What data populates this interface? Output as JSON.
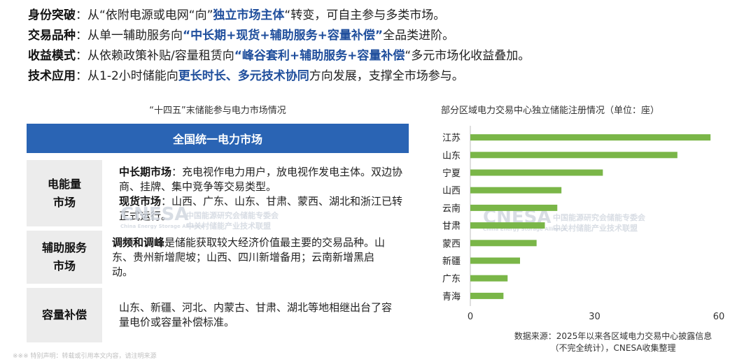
{
  "bullets": [
    {
      "key": "身份突破",
      "parts": [
        {
          "t": "：从“依附电源或电网“向”"
        },
        {
          "t": "独立市场主体",
          "h": true
        },
        {
          "t": "“转变，可自主参与多类市场。"
        }
      ]
    },
    {
      "key": "交易品种",
      "parts": [
        {
          "t": "：从单一辅助服务向"
        },
        {
          "t": "“中长期+现货+辅助服务+容量补偿”",
          "h": true
        },
        {
          "t": "全品类进阶。"
        }
      ]
    },
    {
      "key": "收益模式",
      "parts": [
        {
          "t": "：从依赖政策补贴/容量租赁向"
        },
        {
          "t": "“峰谷套利+辅助服务+容量补偿",
          "h": true
        },
        {
          "t": "“多元市场化收益叠加。"
        }
      ]
    },
    {
      "key": "技术应用",
      "parts": [
        {
          "t": "：从1-2小时储能向"
        },
        {
          "t": "更长时长、多元技术协同",
          "h": true
        },
        {
          "t": "方向发展，支撑全市场参与。"
        }
      ]
    }
  ],
  "left_panel": {
    "title": "“十四五”末储能参与电力市场情况",
    "banner": "全国统一电力市场",
    "rows": {
      "energy": {
        "label_1": "电能量",
        "label_2": "市场",
        "k1": "中长期市场",
        "t1": "：充电视作电力用户，放电视作发电主体。双边协商、挂牌、集中竞争等交易类型。",
        "k2": "现货市场",
        "t2": "：山西、广东、山东、甘肃、蒙西、湖北和浙江已转正式运行。"
      },
      "ancillary": {
        "label_1": "辅助服务",
        "label_2": "市场",
        "k1": "调频和调峰",
        "t1": "是储能获取较大经济价值最主要的交易品种。山东、贵州新增爬坡；山西、四川新增备用；云南新增黑启动。"
      },
      "capacity": {
        "label": "容量补偿",
        "t1": "山东、新疆、河北、内蒙古、甘肃、湖北等地相继出台了容量电价或容量补偿标准。"
      }
    }
  },
  "watermark": {
    "brand": "CNESA",
    "cn_1": "中国能源研究会储能专委会",
    "cn_2": "中关村储能产业技术联盟",
    "en": "China Energy Storage Alliance"
  },
  "chart_data": {
    "type": "bar",
    "orientation": "horizontal",
    "title": "部分区域电力交易中心独立储能注册情况（单位：座）",
    "categories": [
      "江苏",
      "山东",
      "宁夏",
      "山西",
      "云南",
      "甘肃",
      "蒙西",
      "新疆",
      "广东",
      "青海"
    ],
    "values": [
      58,
      50,
      32,
      22,
      21,
      18,
      16,
      12,
      9,
      8
    ],
    "xlim": [
      0,
      60
    ],
    "xticks": [
      "0",
      "30",
      "60"
    ],
    "bar_color": "#7ab648",
    "grid": false,
    "legend": "none"
  },
  "source_1": "数据来源：2025年以来各区域电力交易中心披露信息",
  "source_2": "（不完全统计），CNESA收集整理",
  "footnote": "※※※ 特别声明：转载或引用本文内容，请注明来源"
}
